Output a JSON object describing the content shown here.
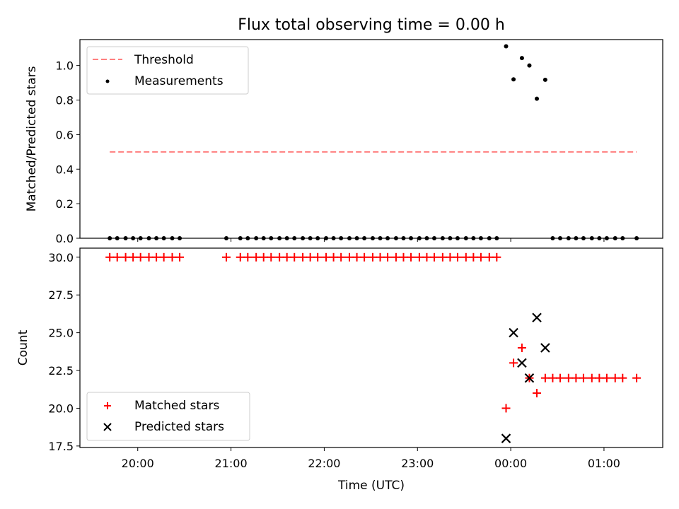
{
  "title": "Flux total observing time = 0.00 h",
  "chart_data": [
    {
      "type": "scatter",
      "ylabel": "Matched/Predicted stars",
      "xlabel": "",
      "ylim": [
        0,
        1.15
      ],
      "yticks": [
        0.0,
        0.2,
        0.4,
        0.6,
        0.8,
        1.0
      ],
      "ytick_labels": [
        "0.0",
        "0.2",
        "0.4",
        "0.6",
        "0.8",
        "1.0"
      ],
      "xlim_hours": [
        19.38,
        25.63
      ],
      "xticks_hours": [
        20,
        21,
        22,
        23,
        24,
        25
      ],
      "grid": false,
      "legend_position": "top-left",
      "series": [
        {
          "name": "Threshold",
          "kind": "line-dashed",
          "color": "#ff7f7f",
          "x": [
            19.7,
            25.35
          ],
          "y": [
            0.5,
            0.5
          ]
        },
        {
          "name": "Measurements",
          "kind": "dot",
          "color": "#000000",
          "x": [
            19.7,
            19.78,
            19.87,
            19.95,
            20.03,
            20.12,
            20.2,
            20.28,
            20.37,
            20.45,
            20.95,
            21.1,
            21.18,
            21.27,
            21.35,
            21.43,
            21.52,
            21.6,
            21.68,
            21.77,
            21.85,
            21.93,
            22.02,
            22.1,
            22.18,
            22.27,
            22.35,
            22.43,
            22.52,
            22.6,
            22.68,
            22.77,
            22.85,
            22.93,
            23.02,
            23.1,
            23.18,
            23.27,
            23.35,
            23.43,
            23.52,
            23.6,
            23.68,
            23.77,
            23.85,
            23.95,
            24.03,
            24.12,
            24.2,
            24.28,
            24.37,
            24.45,
            24.53,
            24.62,
            24.7,
            24.78,
            24.87,
            24.95,
            25.03,
            25.12,
            25.2,
            25.35
          ],
          "y": [
            0,
            0,
            0,
            0,
            0,
            0,
            0,
            0,
            0,
            0,
            0,
            0,
            0,
            0,
            0,
            0,
            0,
            0,
            0,
            0,
            0,
            0,
            0,
            0,
            0,
            0,
            0,
            0,
            0,
            0,
            0,
            0,
            0,
            0,
            0,
            0,
            0,
            0,
            0,
            0,
            0,
            0,
            0,
            0,
            0,
            1.111,
            0.92,
            1.043,
            1.0,
            0.808,
            0.917,
            0,
            0,
            0,
            0,
            0,
            0,
            0,
            0,
            0,
            0,
            0
          ]
        }
      ]
    },
    {
      "type": "scatter",
      "ylabel": "Count",
      "xlabel": "Time (UTC)",
      "ylim": [
        17.4,
        30.6
      ],
      "yticks": [
        17.5,
        20.0,
        22.5,
        25.0,
        27.5,
        30.0
      ],
      "ytick_labels": [
        "17.5",
        "20.0",
        "22.5",
        "25.0",
        "27.5",
        "30.0"
      ],
      "xlim_hours": [
        19.38,
        25.63
      ],
      "xticks_hours": [
        20,
        21,
        22,
        23,
        24,
        25
      ],
      "xtick_labels": [
        "20:00",
        "21:00",
        "22:00",
        "23:00",
        "00:00",
        "01:00"
      ],
      "grid": false,
      "legend_position": "bottom-left",
      "series": [
        {
          "name": "Matched stars",
          "kind": "plus",
          "color": "#ff0000",
          "x": [
            19.7,
            19.78,
            19.87,
            19.95,
            20.03,
            20.12,
            20.2,
            20.28,
            20.37,
            20.45,
            20.95,
            21.1,
            21.18,
            21.27,
            21.35,
            21.43,
            21.52,
            21.6,
            21.68,
            21.77,
            21.85,
            21.93,
            22.02,
            22.1,
            22.18,
            22.27,
            22.35,
            22.43,
            22.52,
            22.6,
            22.68,
            22.77,
            22.85,
            22.93,
            23.02,
            23.1,
            23.18,
            23.27,
            23.35,
            23.43,
            23.52,
            23.6,
            23.68,
            23.77,
            23.85,
            23.95,
            24.03,
            24.12,
            24.2,
            24.28,
            24.37,
            24.45,
            24.53,
            24.62,
            24.7,
            24.78,
            24.87,
            24.95,
            25.03,
            25.12,
            25.2,
            25.35
          ],
          "y": [
            30,
            30,
            30,
            30,
            30,
            30,
            30,
            30,
            30,
            30,
            30,
            30,
            30,
            30,
            30,
            30,
            30,
            30,
            30,
            30,
            30,
            30,
            30,
            30,
            30,
            30,
            30,
            30,
            30,
            30,
            30,
            30,
            30,
            30,
            30,
            30,
            30,
            30,
            30,
            30,
            30,
            30,
            30,
            30,
            30,
            20,
            23,
            24,
            22,
            21,
            22,
            22,
            22,
            22,
            22,
            22,
            22,
            22,
            22,
            22,
            22,
            22
          ]
        },
        {
          "name": "Predicted stars",
          "kind": "x",
          "color": "#000000",
          "x": [
            23.95,
            24.03,
            24.12,
            24.2,
            24.28,
            24.37
          ],
          "y": [
            18,
            25,
            23,
            22,
            26,
            24
          ]
        }
      ]
    }
  ]
}
